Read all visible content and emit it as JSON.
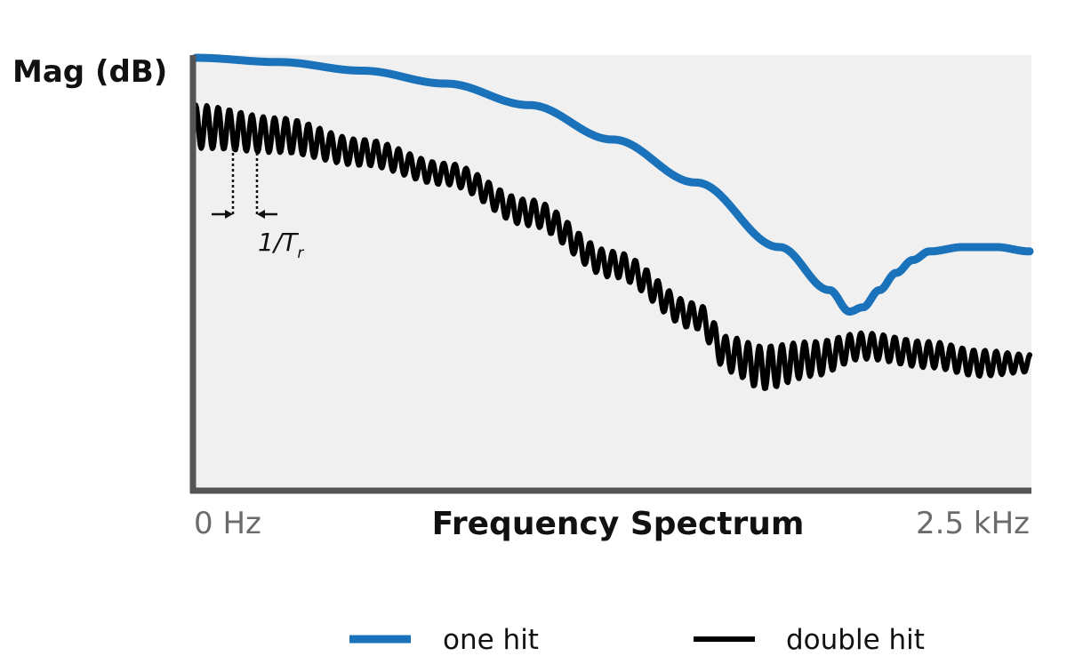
{
  "chart_data": {
    "type": "line",
    "title": "",
    "xlabel": "Frequency Spectrum",
    "ylabel": "Mag (dB)",
    "x_tick_labels": {
      "start": "0 Hz",
      "end": "2.5 kHz"
    },
    "xlim": [
      0,
      2.5
    ],
    "x_unit": "kHz",
    "ylim": [
      0,
      100
    ],
    "grid": false,
    "background": "#f0f0f0",
    "legend": {
      "position": "bottom"
    },
    "annotation": {
      "text": "1/T",
      "subscript": "r"
    },
    "series": [
      {
        "name": "one hit",
        "color": "#1a72bb",
        "x": [
          0,
          0.25,
          0.5,
          0.75,
          1.0,
          1.25,
          1.5,
          1.75,
          1.9,
          1.96,
          2.0,
          2.05,
          2.1,
          2.15,
          2.2,
          2.3,
          2.4,
          2.5
        ],
        "y": [
          100,
          99,
          97,
          94,
          89,
          81,
          71,
          56,
          46,
          41,
          42,
          46,
          50,
          53,
          55,
          56,
          56,
          55
        ]
      },
      {
        "name": "double hit",
        "color": "#000000",
        "x": [
          0,
          0.25,
          0.5,
          0.75,
          1.0,
          1.25,
          1.5,
          1.6,
          1.7,
          1.85,
          2.0,
          2.2,
          2.35,
          2.5
        ],
        "y": [
          84,
          82,
          78,
          73,
          64,
          52,
          40,
          31,
          28,
          30,
          33,
          31,
          29,
          29
        ],
        "ripple_amplitude": [
          5,
          4,
          3,
          2.5,
          3,
          3,
          3,
          4,
          5,
          4,
          3,
          3,
          3,
          2
        ],
        "ripple_period_khz": 0.0338
      }
    ]
  }
}
